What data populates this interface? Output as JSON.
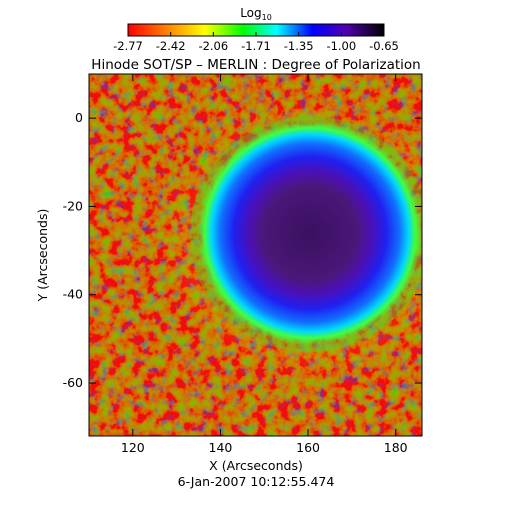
{
  "figure": {
    "title": "Hinode SOT/SP – MERLIN : Degree of Polarization",
    "timestamp": "6-Jan-2007 10:12:55.474"
  },
  "colorbar": {
    "label_base": "Log",
    "label_sub": "10",
    "ticks": [
      "-2.77",
      "-2.42",
      "-2.06",
      "-1.71",
      "-1.35",
      "-1.00",
      "-0.65"
    ],
    "colors": [
      "#ff0000",
      "#ff7f00",
      "#ffff00",
      "#00ff00",
      "#00ffff",
      "#0000ff",
      "#6000c0",
      "#000000"
    ]
  },
  "chart_data": {
    "type": "heatmap",
    "title": "Hinode SOT/SP – MERLIN : Degree of Polarization",
    "xlabel": "X (Arcseconds)",
    "ylabel": "Y (Arcseconds)",
    "xlim": [
      110,
      186
    ],
    "ylim": [
      -72,
      10
    ],
    "xticks": [
      120,
      140,
      160,
      180
    ],
    "yticks": [
      0,
      -20,
      -40,
      -60
    ],
    "value_scale": "log10",
    "value_range": [
      -2.77,
      -0.65
    ],
    "features": {
      "sunspot_umbra_center": [
        163,
        -25
      ],
      "umbra_radius_arcsec": 11,
      "penumbra_radius_arcsec": 19
    }
  }
}
